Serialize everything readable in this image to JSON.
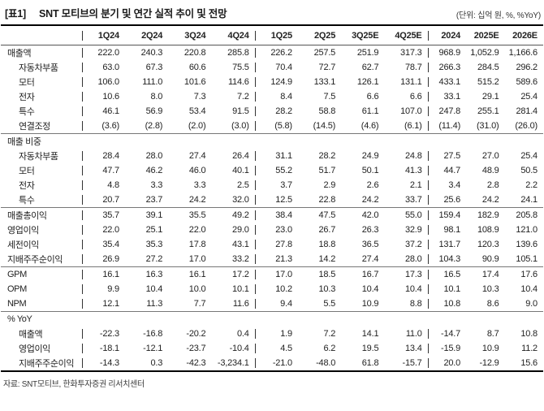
{
  "title": {
    "tag": "[표1]",
    "text": "SNT 모티브의 분기 및 연간 실적 추이 및 전망",
    "unit_note": "(단위: 십억 원, %, %YoY)"
  },
  "table": {
    "columns": [
      "1Q24",
      "2Q24",
      "3Q24",
      "4Q24",
      "1Q25",
      "2Q25",
      "3Q25E",
      "4Q25E",
      "2024",
      "2025E",
      "2026E"
    ],
    "group_start_indices": [
      0,
      4,
      8
    ],
    "annual_start_index": 8,
    "rows": [
      {
        "label": "매출액",
        "indent": false,
        "rule_above": false,
        "values": [
          "222.0",
          "240.3",
          "220.8",
          "285.8",
          "226.2",
          "257.5",
          "251.9",
          "317.3",
          "968.9",
          "1,052.9",
          "1,166.6"
        ]
      },
      {
        "label": "자동차부품",
        "indent": true,
        "rule_above": false,
        "values": [
          "63.0",
          "67.3",
          "60.6",
          "75.5",
          "70.4",
          "72.7",
          "62.7",
          "78.7",
          "266.3",
          "284.5",
          "296.2"
        ]
      },
      {
        "label": "모터",
        "indent": true,
        "rule_above": false,
        "values": [
          "106.0",
          "111.0",
          "101.6",
          "114.6",
          "124.9",
          "133.1",
          "126.1",
          "131.1",
          "433.1",
          "515.2",
          "589.6"
        ]
      },
      {
        "label": "전자",
        "indent": true,
        "rule_above": false,
        "values": [
          "10.6",
          "8.0",
          "7.3",
          "7.2",
          "8.4",
          "7.5",
          "6.6",
          "6.6",
          "33.1",
          "29.1",
          "25.4"
        ]
      },
      {
        "label": "특수",
        "indent": true,
        "rule_above": false,
        "values": [
          "46.1",
          "56.9",
          "53.4",
          "91.5",
          "28.2",
          "58.8",
          "61.1",
          "107.0",
          "247.8",
          "255.1",
          "281.4"
        ]
      },
      {
        "label": "연결조정",
        "indent": true,
        "rule_above": false,
        "values": [
          "(3.6)",
          "(2.8)",
          "(2.0)",
          "(3.0)",
          "(5.8)",
          "(14.5)",
          "(4.6)",
          "(6.1)",
          "(11.4)",
          "(31.0)",
          "(26.0)"
        ]
      },
      {
        "label": "매출 비중",
        "indent": false,
        "rule_above": true,
        "values": [
          "",
          "",
          "",
          "",
          "",
          "",
          "",
          "",
          "",
          "",
          ""
        ]
      },
      {
        "label": "자동차부품",
        "indent": true,
        "rule_above": false,
        "values": [
          "28.4",
          "28.0",
          "27.4",
          "26.4",
          "31.1",
          "28.2",
          "24.9",
          "24.8",
          "27.5",
          "27.0",
          "25.4"
        ]
      },
      {
        "label": "모터",
        "indent": true,
        "rule_above": false,
        "values": [
          "47.7",
          "46.2",
          "46.0",
          "40.1",
          "55.2",
          "51.7",
          "50.1",
          "41.3",
          "44.7",
          "48.9",
          "50.5"
        ]
      },
      {
        "label": "전자",
        "indent": true,
        "rule_above": false,
        "values": [
          "4.8",
          "3.3",
          "3.3",
          "2.5",
          "3.7",
          "2.9",
          "2.6",
          "2.1",
          "3.4",
          "2.8",
          "2.2"
        ]
      },
      {
        "label": "특수",
        "indent": true,
        "rule_above": false,
        "values": [
          "20.7",
          "23.7",
          "24.2",
          "32.0",
          "12.5",
          "22.8",
          "24.2",
          "33.7",
          "25.6",
          "24.2",
          "24.1"
        ]
      },
      {
        "label": "매출총이익",
        "indent": false,
        "rule_above": true,
        "values": [
          "35.7",
          "39.1",
          "35.5",
          "49.2",
          "38.4",
          "47.5",
          "42.0",
          "55.0",
          "159.4",
          "182.9",
          "205.8"
        ]
      },
      {
        "label": "영업이익",
        "indent": false,
        "rule_above": false,
        "values": [
          "22.0",
          "25.1",
          "22.0",
          "29.0",
          "23.0",
          "26.7",
          "26.3",
          "32.9",
          "98.1",
          "108.9",
          "121.0"
        ]
      },
      {
        "label": "세전이익",
        "indent": false,
        "rule_above": false,
        "values": [
          "35.4",
          "35.3",
          "17.8",
          "43.1",
          "27.8",
          "18.8",
          "36.5",
          "37.2",
          "131.7",
          "120.3",
          "139.6"
        ]
      },
      {
        "label": "지배주주순이익",
        "indent": false,
        "rule_above": false,
        "values": [
          "26.9",
          "27.2",
          "17.0",
          "33.2",
          "21.3",
          "14.2",
          "27.4",
          "28.0",
          "104.3",
          "90.9",
          "105.1"
        ]
      },
      {
        "label": "GPM",
        "indent": false,
        "rule_above": true,
        "values": [
          "16.1",
          "16.3",
          "16.1",
          "17.2",
          "17.0",
          "18.5",
          "16.7",
          "17.3",
          "16.5",
          "17.4",
          "17.6"
        ]
      },
      {
        "label": "OPM",
        "indent": false,
        "rule_above": false,
        "values": [
          "9.9",
          "10.4",
          "10.0",
          "10.1",
          "10.2",
          "10.3",
          "10.4",
          "10.4",
          "10.1",
          "10.3",
          "10.4"
        ]
      },
      {
        "label": "NPM",
        "indent": false,
        "rule_above": false,
        "values": [
          "12.1",
          "11.3",
          "7.7",
          "11.6",
          "9.4",
          "5.5",
          "10.9",
          "8.8",
          "10.8",
          "8.6",
          "9.0"
        ]
      },
      {
        "label": "% YoY",
        "indent": false,
        "rule_above": true,
        "values": [
          "",
          "",
          "",
          "",
          "",
          "",
          "",
          "",
          "",
          "",
          ""
        ]
      },
      {
        "label": "매출액",
        "indent": true,
        "rule_above": false,
        "values": [
          "-22.3",
          "-16.8",
          "-20.2",
          "0.4",
          "1.9",
          "7.2",
          "14.1",
          "11.0",
          "-14.7",
          "8.7",
          "10.8"
        ]
      },
      {
        "label": "영업이익",
        "indent": true,
        "rule_above": false,
        "values": [
          "-18.1",
          "-12.1",
          "-23.7",
          "-10.4",
          "4.5",
          "6.2",
          "19.5",
          "13.4",
          "-15.9",
          "10.9",
          "11.2"
        ]
      },
      {
        "label": "지배주주순이익",
        "indent": true,
        "rule_above": false,
        "values": [
          "-14.3",
          "0.3",
          "-42.3",
          "-3,234.1",
          "-21.0",
          "-48.0",
          "61.8",
          "-15.7",
          "20.0",
          "-12.9",
          "15.6"
        ]
      }
    ]
  },
  "footer": {
    "source": "자료: SNT모티브, 한화투자증권 리서치센터"
  }
}
